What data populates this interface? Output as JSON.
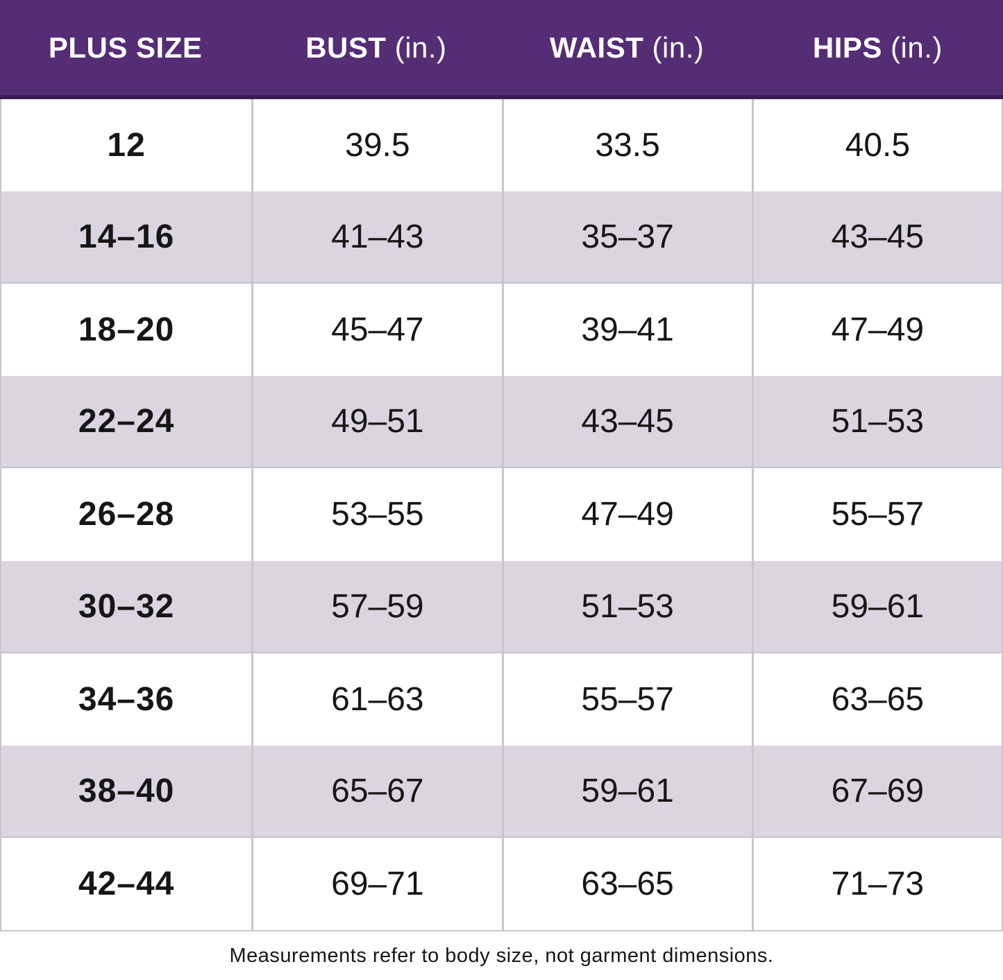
{
  "colors": {
    "header_bg": "#552d74",
    "header_underline": "#3b1c55",
    "header_text": "#ffffff",
    "row_bg": "#ffffff",
    "row_alt_bg": "#dbd5e1",
    "grid_line": "#c9c7cb",
    "body_text": "#161616"
  },
  "size_chart": {
    "columns": [
      {
        "label": "PLUS SIZE",
        "unit": ""
      },
      {
        "label": "BUST",
        "unit": "(in.)"
      },
      {
        "label": "WAIST",
        "unit": "(in.)"
      },
      {
        "label": "HIPS",
        "unit": "(in.)"
      }
    ],
    "rows": [
      {
        "size": "12",
        "bust": "39.5",
        "waist": "33.5",
        "hips": "40.5"
      },
      {
        "size": "14–16",
        "bust": "41–43",
        "waist": "35–37",
        "hips": "43–45"
      },
      {
        "size": "18–20",
        "bust": "45–47",
        "waist": "39–41",
        "hips": "47–49"
      },
      {
        "size": "22–24",
        "bust": "49–51",
        "waist": "43–45",
        "hips": "51–53"
      },
      {
        "size": "26–28",
        "bust": "53–55",
        "waist": "47–49",
        "hips": "55–57"
      },
      {
        "size": "30–32",
        "bust": "57–59",
        "waist": "51–53",
        "hips": "59–61"
      },
      {
        "size": "34–36",
        "bust": "61–63",
        "waist": "55–57",
        "hips": "63–65"
      },
      {
        "size": "38–40",
        "bust": "65–67",
        "waist": "59–61",
        "hips": "67–69"
      },
      {
        "size": "42–44",
        "bust": "69–71",
        "waist": "63–65",
        "hips": "71–73"
      }
    ],
    "footnote": "Measurements refer to body size, not garment dimensions."
  },
  "chart_data": {
    "type": "table",
    "title": "Plus size body measurement chart",
    "columns": [
      "PLUS SIZE",
      "BUST (in.)",
      "WAIST (in.)",
      "HIPS (in.)"
    ],
    "rows": [
      [
        "12",
        "39.5",
        "33.5",
        "40.5"
      ],
      [
        "14–16",
        "41–43",
        "35–37",
        "43–45"
      ],
      [
        "18–20",
        "45–47",
        "39–41",
        "47–49"
      ],
      [
        "22–24",
        "49–51",
        "43–45",
        "51–53"
      ],
      [
        "26–28",
        "53–55",
        "47–49",
        "55–57"
      ],
      [
        "30–32",
        "57–59",
        "51–53",
        "59–61"
      ],
      [
        "34–36",
        "61–63",
        "55–57",
        "63–65"
      ],
      [
        "38–40",
        "65–67",
        "59–61",
        "67–69"
      ],
      [
        "42–44",
        "69–71",
        "63–65",
        "71–73"
      ]
    ],
    "footnote": "Measurements refer to body size, not garment dimensions.",
    "layout": {
      "striped": true,
      "stripe_start": "white",
      "header_style": "purple-band"
    }
  }
}
